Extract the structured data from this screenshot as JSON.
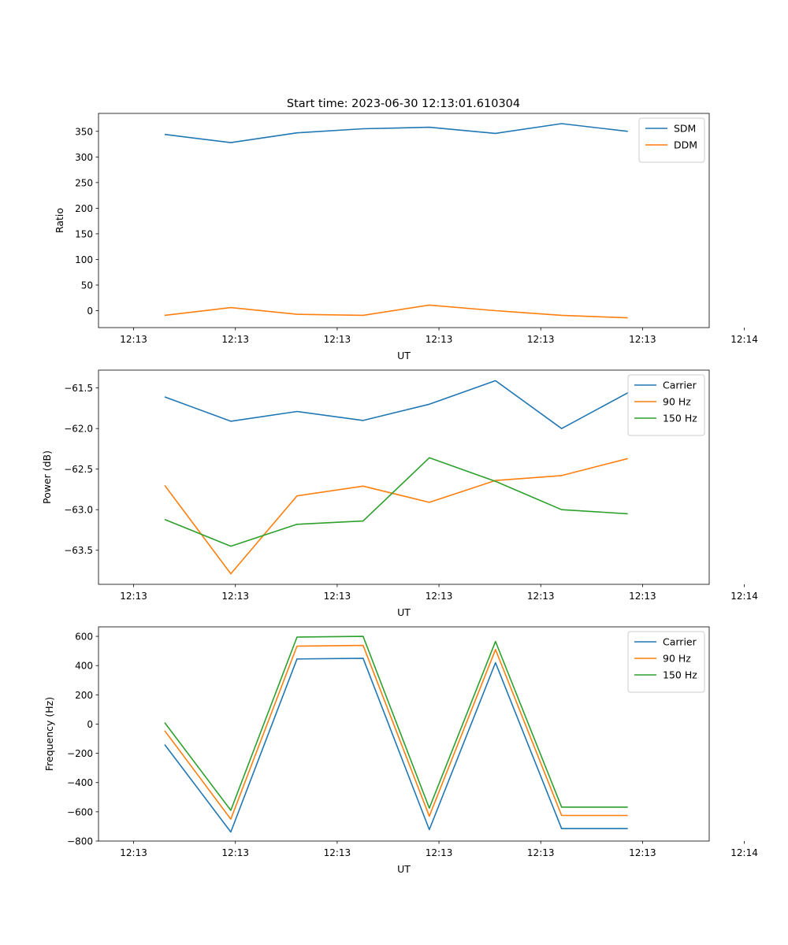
{
  "figure_title": "Start time: 2023-06-30 12:13:01.610304",
  "colors": {
    "blue": "#1f77b4",
    "orange": "#ff7f0e",
    "green": "#2ca02c"
  },
  "chart_data": [
    {
      "type": "line",
      "title": "Start time: 2023-06-30 12:13:01.610304",
      "xlabel": "UT",
      "ylabel": "Ratio",
      "x_tick_labels": [
        "12:13",
        "12:13",
        "12:13",
        "12:13",
        "12:13",
        "12:13",
        "12:14"
      ],
      "x": [
        "12:13:01.61",
        "12:13:02.91",
        "12:13:04.21",
        "12:13:05.51",
        "12:13:06.81",
        "12:13:08.11",
        "12:13:09.41",
        "12:13:10.71"
      ],
      "xlim": [
        "12:13:00.31",
        "12:13:12.31"
      ],
      "ylim": [
        -33,
        385
      ],
      "y_ticks": [
        0,
        50,
        100,
        150,
        200,
        250,
        300,
        350
      ],
      "legend_position": "upper-right",
      "series": [
        {
          "name": "SDM",
          "color": "#1f77b4",
          "values": [
            344,
            328,
            347,
            355,
            358,
            346,
            365,
            350
          ]
        },
        {
          "name": "DDM",
          "color": "#ff7f0e",
          "values": [
            -9,
            6,
            -7,
            -9,
            11,
            0,
            -9,
            -14
          ]
        }
      ]
    },
    {
      "type": "line",
      "xlabel": "UT",
      "ylabel": "Power (dB)",
      "x_tick_labels": [
        "12:13",
        "12:13",
        "12:13",
        "12:13",
        "12:13",
        "12:13",
        "12:14"
      ],
      "x": [
        "12:13:01.61",
        "12:13:02.91",
        "12:13:04.21",
        "12:13:05.51",
        "12:13:06.81",
        "12:13:08.11",
        "12:13:09.41",
        "12:13:10.71"
      ],
      "xlim": [
        "12:13:00.31",
        "12:13:12.31"
      ],
      "ylim": [
        -63.92,
        -61.28
      ],
      "y_ticks": [
        -63.5,
        -63.0,
        -62.5,
        -62.0,
        -61.5
      ],
      "y_tick_labels": [
        "−63.5",
        "−63.0",
        "−62.5",
        "−62.0",
        "−61.5"
      ],
      "legend_position": "upper-right",
      "series": [
        {
          "name": "Carrier",
          "color": "#1f77b4",
          "values": [
            -61.61,
            -61.91,
            -61.79,
            -61.9,
            -61.7,
            -61.41,
            -62.0,
            -61.56
          ]
        },
        {
          "name": "90 Hz",
          "color": "#ff7f0e",
          "values": [
            -62.7,
            -63.79,
            -62.83,
            -62.71,
            -62.91,
            -62.64,
            -62.58,
            -62.37
          ]
        },
        {
          "name": "150 Hz",
          "color": "#2ca02c",
          "values": [
            -63.12,
            -63.45,
            -63.18,
            -63.14,
            -62.36,
            -62.65,
            -63.0,
            -63.05
          ]
        }
      ]
    },
    {
      "type": "line",
      "xlabel": "UT",
      "ylabel": "Frequency (Hz)",
      "x_tick_labels": [
        "12:13",
        "12:13",
        "12:13",
        "12:13",
        "12:13",
        "12:13",
        "12:14"
      ],
      "x": [
        "12:13:01.61",
        "12:13:02.91",
        "12:13:04.21",
        "12:13:05.51",
        "12:13:06.81",
        "12:13:08.11",
        "12:13:09.41",
        "12:13:10.71"
      ],
      "xlim": [
        "12:13:00.31",
        "12:13:12.31"
      ],
      "ylim": [
        -800,
        665
      ],
      "y_ticks": [
        -800,
        -600,
        -400,
        -200,
        0,
        200,
        400,
        600
      ],
      "y_tick_labels": [
        "−800",
        "−600",
        "−400",
        "−200",
        "0",
        "200",
        "400",
        "600"
      ],
      "legend_position": "upper-right",
      "series": [
        {
          "name": "Carrier",
          "color": "#1f77b4",
          "values": [
            -140,
            -738,
            445,
            450,
            -722,
            420,
            -715,
            -715
          ]
        },
        {
          "name": "90 Hz",
          "color": "#ff7f0e",
          "values": [
            -45,
            -650,
            533,
            538,
            -630,
            510,
            -625,
            -625
          ]
        },
        {
          "name": "150 Hz",
          "color": "#2ca02c",
          "values": [
            10,
            -590,
            595,
            600,
            -575,
            565,
            -568,
            -568
          ]
        }
      ]
    }
  ]
}
